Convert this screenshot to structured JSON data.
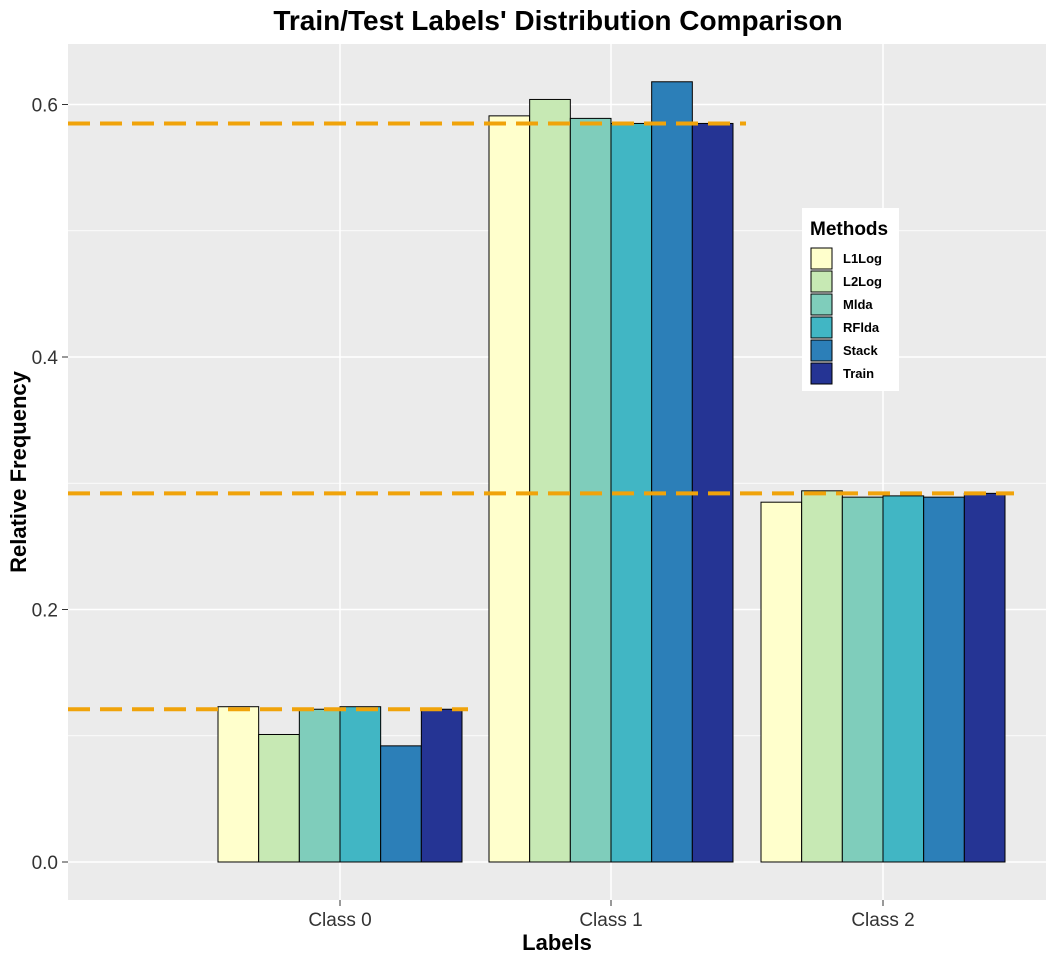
{
  "chart_data": {
    "type": "bar",
    "title": "Train/Test Labels' Distribution Comparison",
    "xlabel": "Labels",
    "ylabel": "Relative Frequency",
    "categories": [
      "Class 0",
      "Class 1",
      "Class 2"
    ],
    "ylim": [
      -0.03,
      0.65
    ],
    "yticks": [
      0.0,
      0.2,
      0.4,
      0.6
    ],
    "ytick_labels": [
      "0.0",
      "0.2",
      "0.4",
      "0.6"
    ],
    "grid": true,
    "legend": {
      "title": "Methods",
      "position": "right"
    },
    "series": [
      {
        "name": "L1Log",
        "color": "#FFFFCC",
        "values": [
          0.123,
          0.591,
          0.285
        ]
      },
      {
        "name": "L2Log",
        "color": "#C7E9B4",
        "values": [
          0.101,
          0.604,
          0.294
        ]
      },
      {
        "name": "Mlda",
        "color": "#7FCDBB",
        "values": [
          0.121,
          0.589,
          0.289
        ]
      },
      {
        "name": "RFlda",
        "color": "#41B6C4",
        "values": [
          0.123,
          0.585,
          0.29
        ]
      },
      {
        "name": "Stack",
        "color": "#2C7FB8",
        "values": [
          0.092,
          0.618,
          0.289
        ]
      },
      {
        "name": "Train",
        "color": "#253494",
        "values": [
          0.121,
          0.585,
          0.292
        ]
      }
    ],
    "reference_lines": {
      "color": "#F0A30A",
      "style": "dashed",
      "values": [
        0.121,
        0.585,
        0.292
      ]
    }
  }
}
